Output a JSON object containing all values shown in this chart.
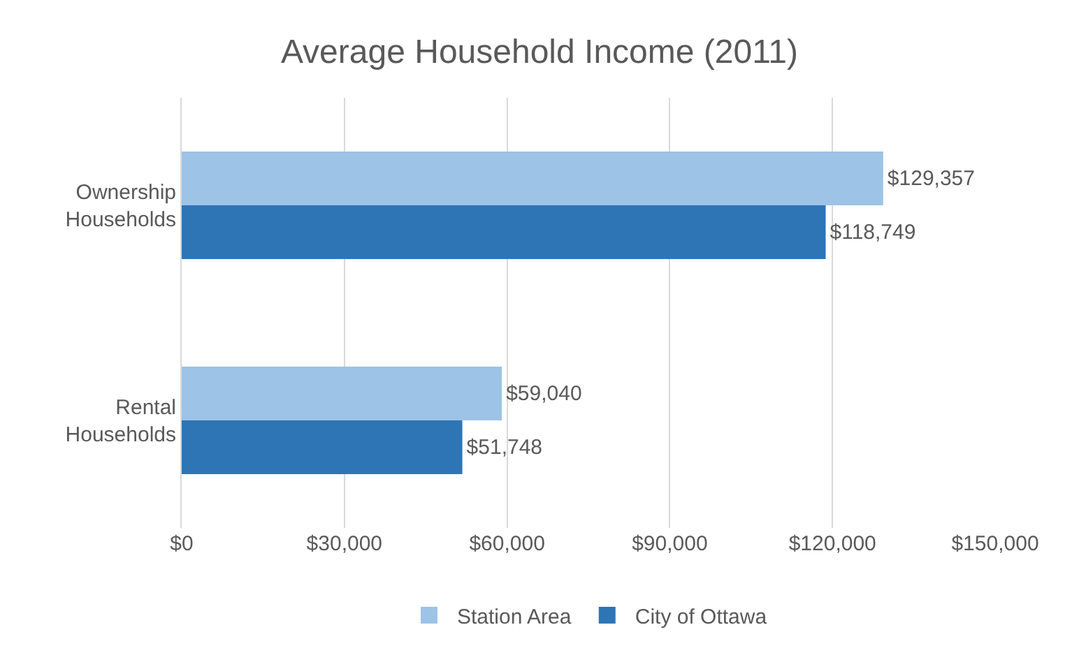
{
  "chart_data": {
    "type": "bar",
    "orientation": "horizontal",
    "title": "Average Household Income (2011)",
    "categories": [
      "Ownership Households",
      "Rental Households"
    ],
    "series": [
      {
        "name": "Station Area",
        "color": "#9dc3e6",
        "values": [
          129357,
          59040
        ],
        "value_labels": [
          "$129,357",
          "$59,040"
        ]
      },
      {
        "name": "City of Ottawa",
        "color": "#2e75b6",
        "values": [
          118749,
          51748
        ],
        "value_labels": [
          "$118,749",
          "$51,748"
        ]
      }
    ],
    "xlim": [
      0,
      150000
    ],
    "xticks": [
      {
        "value": 0,
        "label": "$0"
      },
      {
        "value": 30000,
        "label": "$30,000"
      },
      {
        "value": 60000,
        "label": "$60,000"
      },
      {
        "value": 90000,
        "label": "$90,000"
      },
      {
        "value": 120000,
        "label": "$120,000"
      },
      {
        "value": 150000,
        "label": "$150,000"
      }
    ],
    "grid": "x",
    "legend": "bottom"
  }
}
